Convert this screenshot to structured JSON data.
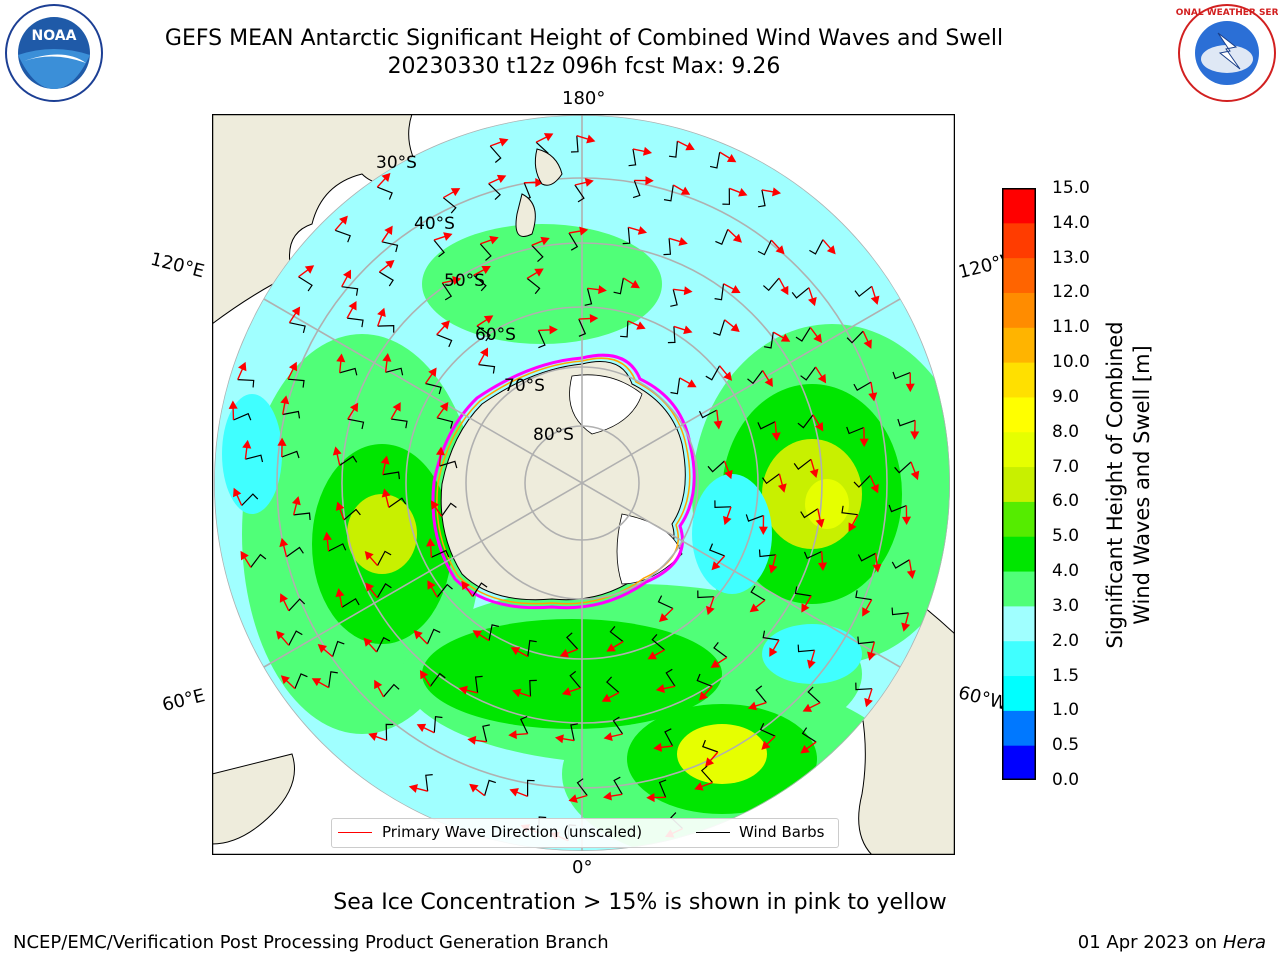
{
  "header": {
    "title_line1": "GEFS MEAN Antarctic Significant Height of Combined Wind Waves and Swell",
    "title_line2": "20230330 t12z 096h fcst   Max: 9.26"
  },
  "logos": {
    "left": {
      "icon": "noaa-logo",
      "text": "NOAA"
    },
    "right": {
      "icon": "national-weather-service-logo",
      "text": "NATIONAL WEATHER SERVICE"
    }
  },
  "map": {
    "projection": "south polar stereographic",
    "longitude_labels": {
      "top": "180°",
      "upper_left": "120°E",
      "upper_right": "120°W",
      "lower_left": "60°E",
      "lower_right": "60°W",
      "bottom": "0°"
    },
    "latitude_labels": [
      "30°S",
      "40°S",
      "50°S",
      "60°S",
      "70°S",
      "80°S"
    ],
    "colors": {
      "land": "#eeecdc",
      "ice": "#ffffff",
      "graticule": "#b0b0b0",
      "direction_arrows": "#ff0000",
      "wind_barbs": "#000000",
      "ice_edge": [
        "#ff00ff",
        "#ffa500",
        "#ffff00"
      ]
    }
  },
  "colorbar": {
    "label_line1": "Significant Height of Combined",
    "label_line2": "Wind Waves and Swell [m]",
    "ticks": [
      "15.0",
      "14.0",
      "13.0",
      "12.0",
      "11.0",
      "10.0",
      "9.0",
      "8.0",
      "7.0",
      "6.0",
      "5.0",
      "4.0",
      "3.0",
      "2.0",
      "1.5",
      "1.0",
      "0.5",
      "0.0"
    ],
    "colors_bottom_to_top": [
      "#0000ff",
      "#0078ff",
      "#00ffff",
      "#40ffff",
      "#a0ffff",
      "#50ff78",
      "#00e600",
      "#55ec00",
      "#c8f000",
      "#e6ff00",
      "#ffff00",
      "#ffe000",
      "#ffb400",
      "#ff8c00",
      "#ff6400",
      "#ff3c00",
      "#ff0000"
    ]
  },
  "legend": {
    "items": [
      {
        "label": "Primary Wave Direction (unscaled)",
        "color": "#ff0000"
      },
      {
        "label": "Wind Barbs",
        "color": "#000000"
      }
    ]
  },
  "notes": {
    "ice": "Sea Ice Concentration > 15% is shown in pink to yellow"
  },
  "footer": {
    "left": "NCEP/EMC/Verification Post Processing Product Generation Branch",
    "date": "01 Apr 2023 on ",
    "machine": "Hera"
  }
}
